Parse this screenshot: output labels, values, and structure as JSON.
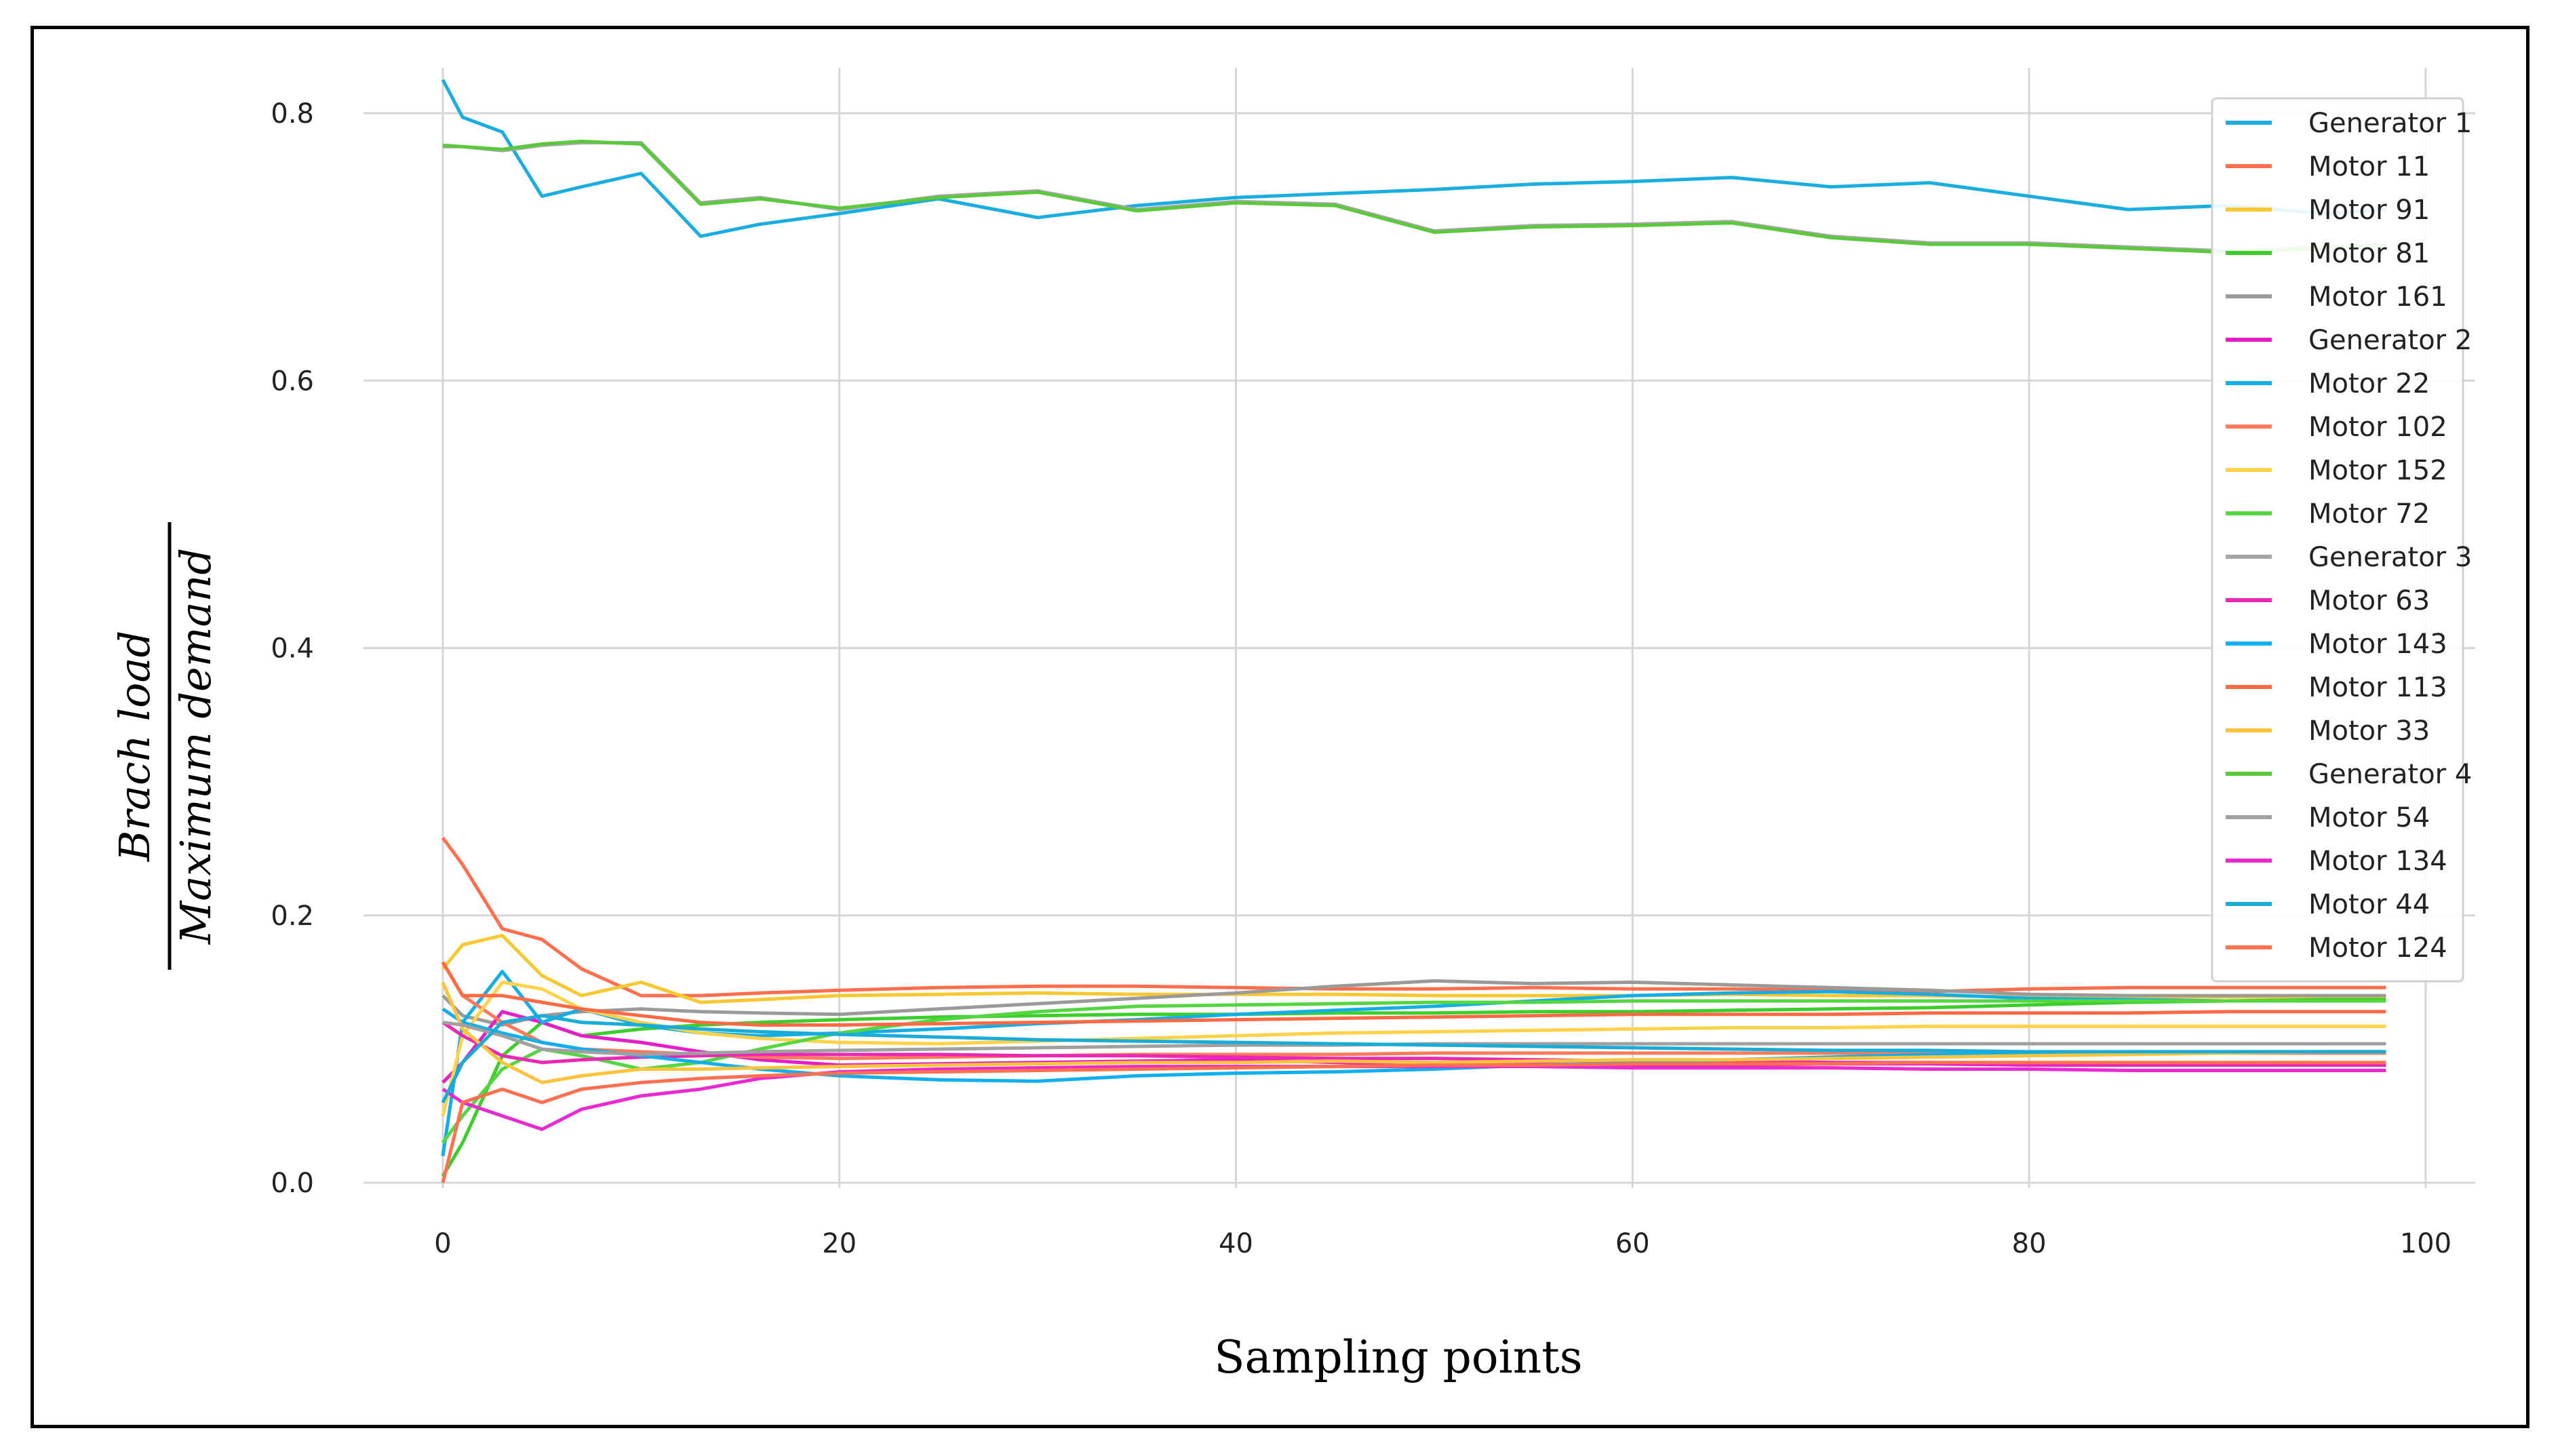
{
  "chart_data": {
    "type": "line",
    "title": "",
    "xlabel": "Sampling points",
    "ylabel_numerator": "Brach   load",
    "ylabel_denominator": "Maximum   demand",
    "xlim": [
      -4,
      102.5
    ],
    "ylim": [
      -0.004,
      0.834
    ],
    "xticks": [
      0,
      20,
      40,
      60,
      80,
      100
    ],
    "yticks": [
      0.0,
      0.2,
      0.4,
      0.6,
      0.8
    ],
    "xtick_labels": [
      "0",
      "20",
      "40",
      "60",
      "80",
      "100"
    ],
    "ytick_labels": [
      "0.0",
      "0.2",
      "0.4",
      "0.6",
      "0.8"
    ],
    "grid": true,
    "legend_position": "top-right",
    "x": [
      0,
      1,
      3,
      5,
      7,
      10,
      13,
      16,
      20,
      25,
      30,
      35,
      40,
      45,
      50,
      55,
      60,
      65,
      70,
      75,
      80,
      85,
      90,
      95,
      98
    ],
    "series": [
      {
        "name": "Generator 1",
        "color": "#1aaee0",
        "values": [
          0.825,
          0.797,
          0.786,
          0.738,
          0.745,
          0.755,
          0.708,
          0.717,
          0.725,
          0.736,
          0.722,
          0.731,
          0.737,
          0.74,
          0.743,
          0.747,
          0.749,
          0.752,
          0.745,
          0.748,
          0.738,
          0.728,
          0.731,
          0.725,
          0.728
        ]
      },
      {
        "name": "Motor 11",
        "color": "#ff6f4e",
        "values": [
          0.258,
          0.238,
          0.19,
          0.182,
          0.16,
          0.14,
          0.14,
          0.142,
          0.144,
          0.146,
          0.147,
          0.147,
          0.146,
          0.145,
          0.145,
          0.146,
          0.145,
          0.145,
          0.144,
          0.143,
          0.145,
          0.146,
          0.146,
          0.146,
          0.146
        ]
      },
      {
        "name": "Motor 91",
        "color": "#f8c832",
        "values": [
          0.16,
          0.178,
          0.185,
          0.155,
          0.14,
          0.15,
          0.135,
          0.137,
          0.14,
          0.141,
          0.142,
          0.141,
          0.141,
          0.141,
          0.14,
          0.14,
          0.14,
          0.141,
          0.14,
          0.14,
          0.139,
          0.139,
          0.139,
          0.139,
          0.139
        ]
      },
      {
        "name": "Motor 81",
        "color": "#3ccf2c",
        "values": [
          0.005,
          0.03,
          0.095,
          0.12,
          0.11,
          0.115,
          0.118,
          0.12,
          0.122,
          0.124,
          0.125,
          0.126,
          0.126,
          0.127,
          0.127,
          0.128,
          0.128,
          0.129,
          0.13,
          0.131,
          0.133,
          0.135,
          0.136,
          0.137,
          0.137
        ]
      },
      {
        "name": "Motor 161",
        "color": "#9a9a9a",
        "values": [
          0.14,
          0.125,
          0.118,
          0.125,
          0.128,
          0.13,
          0.128,
          0.127,
          0.126,
          0.13,
          0.134,
          0.138,
          0.142,
          0.147,
          0.151,
          0.149,
          0.15,
          0.148,
          0.146,
          0.144,
          0.141,
          0.14,
          0.14,
          0.14,
          0.14
        ]
      },
      {
        "name": "Generator 2",
        "color": "#e61ec8",
        "values": [
          0.075,
          0.09,
          0.128,
          0.12,
          0.11,
          0.105,
          0.098,
          0.092,
          0.088,
          0.089,
          0.09,
          0.091,
          0.092,
          0.09,
          0.088,
          0.089,
          0.088,
          0.088,
          0.089,
          0.089,
          0.088,
          0.088,
          0.088,
          0.088,
          0.088
        ]
      },
      {
        "name": "Motor 22",
        "color": "#14aee6",
        "values": [
          0.02,
          0.12,
          0.158,
          0.12,
          0.13,
          0.118,
          0.112,
          0.11,
          0.112,
          0.115,
          0.119,
          0.122,
          0.126,
          0.129,
          0.132,
          0.136,
          0.14,
          0.142,
          0.143,
          0.141,
          0.138,
          0.137,
          0.136,
          0.136,
          0.136
        ]
      },
      {
        "name": "Motor 102",
        "color": "#ff7a5a",
        "values": [
          0.165,
          0.14,
          0.12,
          0.105,
          0.1,
          0.098,
          0.096,
          0.094,
          0.093,
          0.094,
          0.095,
          0.096,
          0.096,
          0.096,
          0.097,
          0.097,
          0.097,
          0.097,
          0.097,
          0.097,
          0.097,
          0.097,
          0.097,
          0.097,
          0.097
        ]
      },
      {
        "name": "Motor 152",
        "color": "#ffd24a",
        "values": [
          0.05,
          0.11,
          0.15,
          0.145,
          0.13,
          0.12,
          0.112,
          0.108,
          0.105,
          0.104,
          0.106,
          0.108,
          0.11,
          0.112,
          0.113,
          0.114,
          0.115,
          0.116,
          0.116,
          0.117,
          0.117,
          0.117,
          0.117,
          0.117,
          0.117
        ]
      },
      {
        "name": "Motor 72",
        "color": "#54d640",
        "values": [
          0.03,
          0.05,
          0.085,
          0.1,
          0.095,
          0.085,
          0.09,
          0.1,
          0.112,
          0.122,
          0.128,
          0.132,
          0.133,
          0.134,
          0.135,
          0.135,
          0.136,
          0.136,
          0.136,
          0.136,
          0.136,
          0.136,
          0.136,
          0.136,
          0.136
        ]
      },
      {
        "name": "Generator 3",
        "color": "#a6a6a6",
        "values": [
          0.775,
          0.775,
          0.772,
          0.776,
          0.778,
          0.778,
          0.733,
          0.737,
          0.728,
          0.738,
          0.742,
          0.728,
          0.734,
          0.732,
          0.712,
          0.716,
          0.717,
          0.719,
          0.708,
          0.703,
          0.703,
          0.7,
          0.697,
          0.7,
          0.702
        ]
      },
      {
        "name": "Motor 63",
        "color": "#ea28b4",
        "values": [
          0.12,
          0.11,
          0.095,
          0.09,
          0.092,
          0.094,
          0.095,
          0.096,
          0.096,
          0.096,
          0.095,
          0.095,
          0.094,
          0.093,
          0.093,
          0.092,
          0.091,
          0.091,
          0.09,
          0.09,
          0.089,
          0.089,
          0.089,
          0.089,
          0.089
        ]
      },
      {
        "name": "Motor 143",
        "color": "#10b0f0",
        "values": [
          0.13,
          0.12,
          0.112,
          0.105,
          0.1,
          0.095,
          0.09,
          0.085,
          0.08,
          0.077,
          0.076,
          0.08,
          0.082,
          0.083,
          0.085,
          0.088,
          0.09,
          0.092,
          0.094,
          0.096,
          0.097,
          0.098,
          0.098,
          0.098,
          0.098
        ]
      },
      {
        "name": "Motor 113",
        "color": "#ff6a44",
        "values": [
          0.165,
          0.14,
          0.14,
          0.135,
          0.13,
          0.125,
          0.12,
          0.118,
          0.118,
          0.119,
          0.12,
          0.121,
          0.122,
          0.123,
          0.124,
          0.125,
          0.126,
          0.126,
          0.126,
          0.127,
          0.127,
          0.127,
          0.128,
          0.128,
          0.128
        ]
      },
      {
        "name": "Motor 33",
        "color": "#fcc43a",
        "values": [
          0.15,
          0.115,
          0.09,
          0.075,
          0.08,
          0.085,
          0.085,
          0.086,
          0.087,
          0.088,
          0.089,
          0.09,
          0.09,
          0.091,
          0.09,
          0.091,
          0.092,
          0.092,
          0.093,
          0.094,
          0.095,
          0.096,
          0.097,
          0.098,
          0.098
        ]
      },
      {
        "name": "Generator 4",
        "color": "#5ac93c",
        "values": [
          0.776,
          0.775,
          0.773,
          0.777,
          0.779,
          0.777,
          0.732,
          0.736,
          0.729,
          0.737,
          0.741,
          0.727,
          0.733,
          0.731,
          0.711,
          0.715,
          0.716,
          0.718,
          0.707,
          0.702,
          0.702,
          0.699,
          0.696,
          0.699,
          0.701
        ]
      },
      {
        "name": "Motor 54",
        "color": "#a0a0a0",
        "values": [
          0.12,
          0.118,
          0.11,
          0.1,
          0.098,
          0.096,
          0.097,
          0.098,
          0.099,
          0.1,
          0.101,
          0.102,
          0.103,
          0.103,
          0.104,
          0.104,
          0.104,
          0.104,
          0.104,
          0.104,
          0.104,
          0.104,
          0.104,
          0.104,
          0.104
        ]
      },
      {
        "name": "Motor 134",
        "color": "#e82ad0",
        "values": [
          0.07,
          0.06,
          0.05,
          0.04,
          0.055,
          0.065,
          0.07,
          0.078,
          0.083,
          0.085,
          0.086,
          0.087,
          0.087,
          0.087,
          0.087,
          0.087,
          0.086,
          0.086,
          0.086,
          0.085,
          0.085,
          0.084,
          0.084,
          0.084,
          0.084
        ]
      },
      {
        "name": "Motor 44",
        "color": "#18acd8",
        "values": [
          0.06,
          0.09,
          0.12,
          0.125,
          0.12,
          0.118,
          0.115,
          0.113,
          0.111,
          0.109,
          0.107,
          0.106,
          0.105,
          0.104,
          0.103,
          0.102,
          0.101,
          0.1,
          0.099,
          0.099,
          0.098,
          0.098,
          0.098,
          0.098,
          0.098
        ]
      },
      {
        "name": "Motor 124",
        "color": "#ff7050",
        "values": [
          0.0,
          0.06,
          0.07,
          0.06,
          0.07,
          0.075,
          0.078,
          0.08,
          0.082,
          0.083,
          0.084,
          0.085,
          0.086,
          0.087,
          0.088,
          0.088,
          0.089,
          0.089,
          0.089,
          0.09,
          0.09,
          0.09,
          0.09,
          0.09,
          0.09
        ]
      }
    ]
  }
}
